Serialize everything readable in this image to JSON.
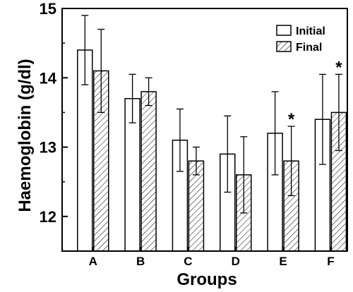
{
  "chart_data": {
    "type": "bar",
    "xlabel": "Groups",
    "ylabel": "Haemoglobin (g/dl)",
    "categories": [
      "A",
      "B",
      "C",
      "D",
      "E",
      "F"
    ],
    "ylim": [
      11.5,
      15
    ],
    "yticks": [
      12,
      13,
      14,
      15
    ],
    "series": [
      {
        "name": "Initial",
        "pattern": "open",
        "values": [
          14.4,
          13.7,
          13.1,
          12.9,
          13.2,
          13.4
        ],
        "error": [
          0.5,
          0.35,
          0.45,
          0.55,
          0.6,
          0.65
        ]
      },
      {
        "name": "Final",
        "pattern": "hatched",
        "values": [
          14.1,
          13.8,
          12.8,
          12.6,
          12.8,
          13.5
        ],
        "error": [
          0.6,
          0.2,
          0.2,
          0.55,
          0.5,
          0.55
        ]
      }
    ],
    "annotations": [
      {
        "category": "E",
        "series": "Final",
        "text": "*"
      },
      {
        "category": "F",
        "series": "Final",
        "text": "*"
      }
    ],
    "legend_position": "top-right",
    "grid": false
  }
}
